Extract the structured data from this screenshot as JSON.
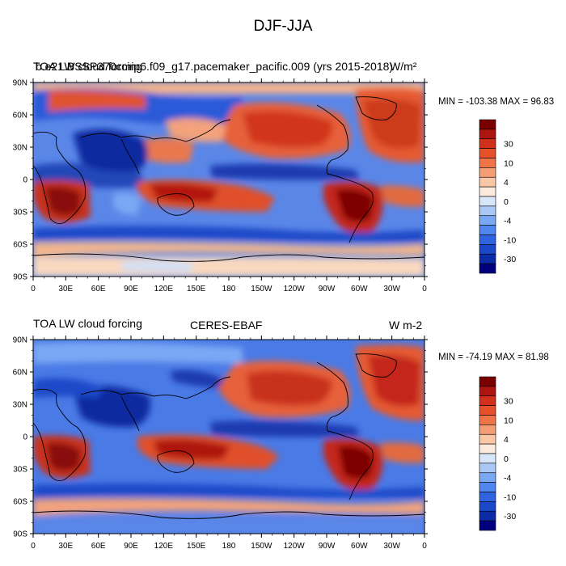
{
  "title": "DJF-JJA",
  "colorbar_colors": [
    "#00007f",
    "#0b2ca6",
    "#1a48c8",
    "#2f64e0",
    "#4f86ef",
    "#7aa8f4",
    "#a9c8f6",
    "#d7e6f8",
    "#fbe9dc",
    "#f9c6a6",
    "#f59d75",
    "#ef7549",
    "#e6502b",
    "#d1301a",
    "#ad1510",
    "#7a0000"
  ],
  "colorbar_labels": [
    "30",
    "10",
    "4",
    "0",
    "-4",
    "-10",
    "-30"
  ],
  "axes": {
    "lat_labels": [
      "90N",
      "60N",
      "30N",
      "0",
      "30S",
      "60S",
      "90S"
    ],
    "lon_labels": [
      "0",
      "30E",
      "60E",
      "90E",
      "120E",
      "150E",
      "180",
      "150W",
      "120W",
      "90W",
      "60W",
      "30W",
      "0"
    ]
  },
  "panels": [
    {
      "left_title": "TOA LW cloud forcing",
      "center_title": "b.e21.BSSP370cmip6.f09_g17.pacemaker_pacific.009 (yrs 2015-2018)",
      "units": "W/m²",
      "stats": "MIN = -103.38 MAX =  96.83"
    },
    {
      "left_title": "TOA LW cloud forcing",
      "center_title": "CERES-EBAF",
      "units": "W m-2",
      "stats": "MIN = -74.19 MAX =  81.98"
    }
  ]
}
